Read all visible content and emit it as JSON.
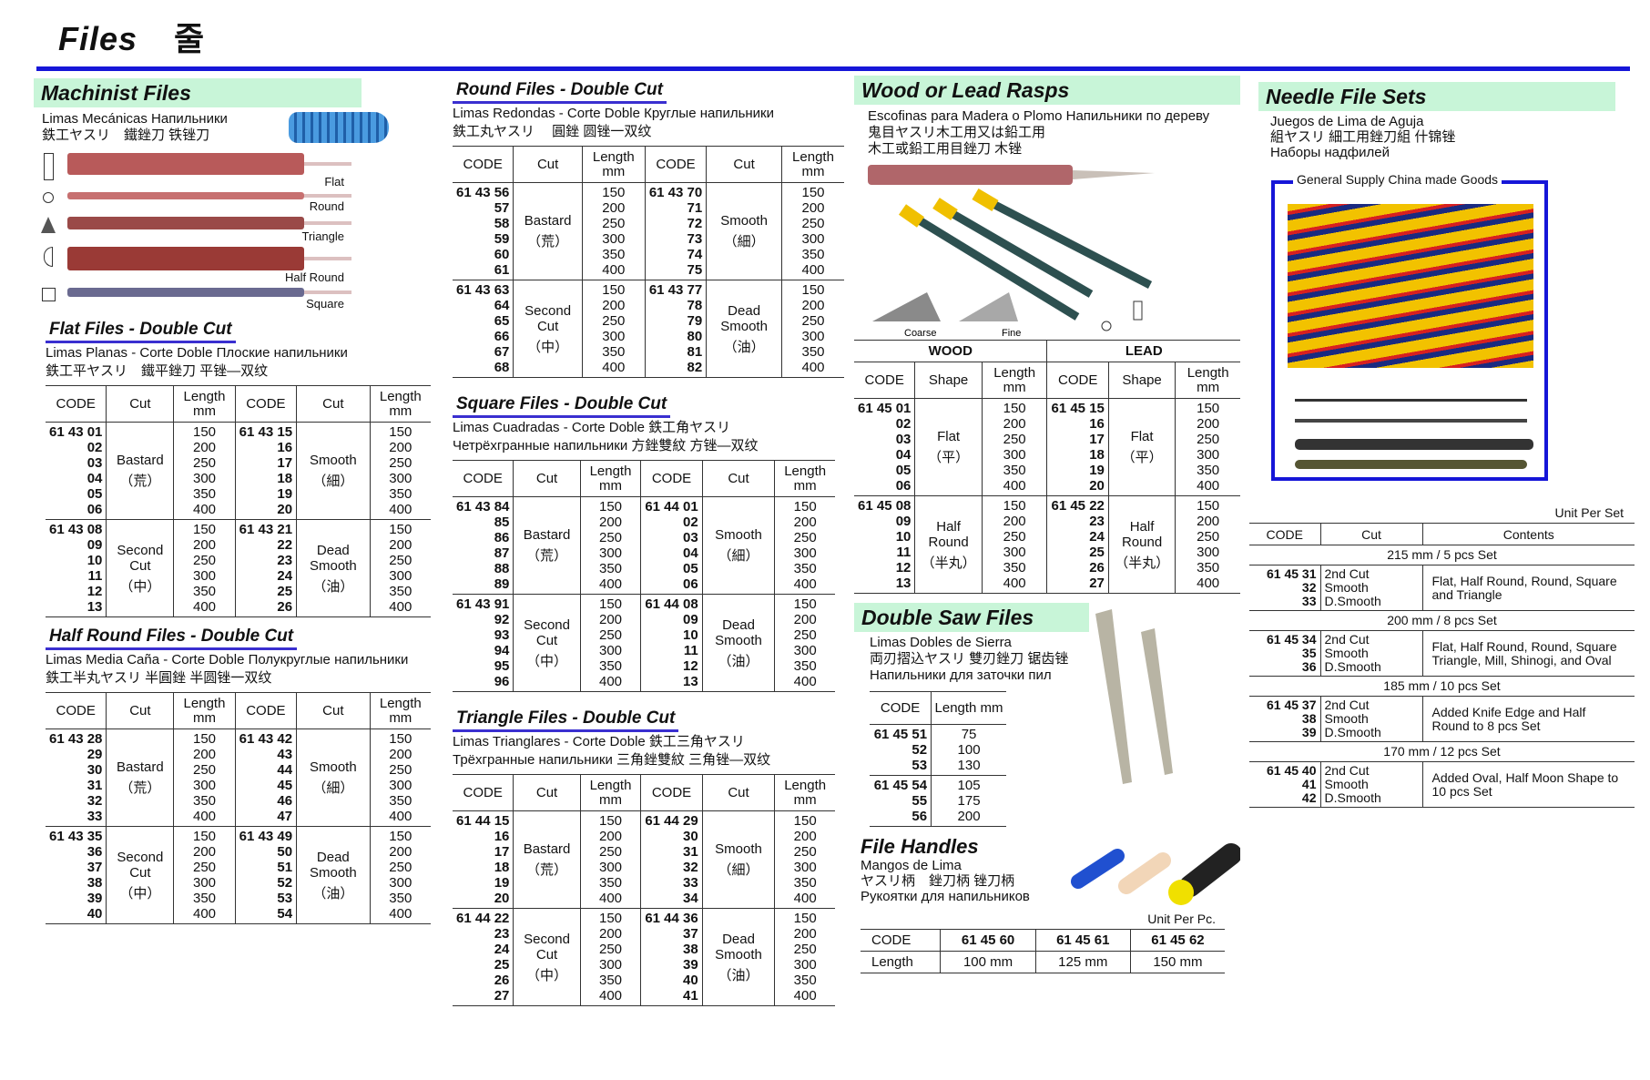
{
  "page": {
    "title": "Files",
    "title_ko": "줄"
  },
  "colors": {
    "rule": "#1616d8",
    "section_bar": "#c8f5d8",
    "underline": "#3a2fd0"
  },
  "machinist": {
    "title": "Machinist Files",
    "sub1": "Limas Mecánicas Напильники",
    "sub2": "鉄工ヤスリ　鐵銼刀 铁锉刀",
    "shapes": [
      {
        "label": "Flat",
        "icon": "rectangle-icon"
      },
      {
        "label": "Round",
        "icon": "circle-icon"
      },
      {
        "label": "Triangle",
        "icon": "triangle-icon"
      },
      {
        "label": "Half Round",
        "icon": "half-circle-icon"
      },
      {
        "label": "Square",
        "icon": "square-icon"
      }
    ]
  },
  "flat": {
    "title": "Flat Files - Double Cut",
    "sub1": "Limas Planas - Corte Doble Плоские напильники",
    "sub2": "鉄工平ヤスリ　鐵平銼刀 平锉—双纹",
    "headers": [
      "CODE",
      "Cut",
      "Length mm",
      "CODE",
      "Cut",
      "Length mm"
    ],
    "groups": [
      {
        "lcodes": [
          "61 43 01",
          "02",
          "03",
          "04",
          "05",
          "06"
        ],
        "lcut": "Bastard",
        "lcjk": "（荒）",
        "rcodes": [
          "61 43 15",
          "16",
          "17",
          "18",
          "19",
          "20"
        ],
        "rcut": "Smooth",
        "rcjk": "（細）",
        "lengths": [
          "150",
          "200",
          "250",
          "300",
          "350",
          "400"
        ]
      },
      {
        "lcodes": [
          "61 43 08",
          "09",
          "10",
          "11",
          "12",
          "13"
        ],
        "lcut": "Second Cut",
        "lcjk": "（中）",
        "rcodes": [
          "61 43 21",
          "22",
          "23",
          "24",
          "25",
          "26"
        ],
        "rcut": "Dead Smooth",
        "rcjk": "（油）",
        "lengths": [
          "150",
          "200",
          "250",
          "300",
          "350",
          "400"
        ]
      }
    ]
  },
  "halfround": {
    "title": "Half Round Files - Double Cut",
    "sub1": "Limas Media Caña - Corte Doble Полукруглые напильники",
    "sub2": "鉄工半丸ヤスリ 半圓銼 半圆锉一双纹",
    "headers": [
      "CODE",
      "Cut",
      "Length mm",
      "CODE",
      "Cut",
      "Length mm"
    ],
    "groups": [
      {
        "lcodes": [
          "61 43 28",
          "29",
          "30",
          "31",
          "32",
          "33"
        ],
        "lcut": "Bastard",
        "lcjk": "（荒）",
        "rcodes": [
          "61 43 42",
          "43",
          "44",
          "45",
          "46",
          "47"
        ],
        "rcut": "Smooth",
        "rcjk": "（細）",
        "lengths": [
          "150",
          "200",
          "250",
          "300",
          "350",
          "400"
        ]
      },
      {
        "lcodes": [
          "61 43 35",
          "36",
          "37",
          "38",
          "39",
          "40"
        ],
        "lcut": "Second Cut",
        "lcjk": "（中）",
        "rcodes": [
          "61 43 49",
          "50",
          "51",
          "52",
          "53",
          "54"
        ],
        "rcut": "Dead Smooth",
        "rcjk": "（油）",
        "lengths": [
          "150",
          "200",
          "250",
          "300",
          "350",
          "400"
        ]
      }
    ]
  },
  "round": {
    "title": "Round Files - Double Cut",
    "sub1": "Limas Redondas - Corte Doble  Круглые напильники",
    "sub2": "鉄工丸ヤスリ　 圓銼 圆锉一双纹",
    "headers": [
      "CODE",
      "Cut",
      "Length mm",
      "CODE",
      "Cut",
      "Length mm"
    ],
    "groups": [
      {
        "lcodes": [
          "61 43 56",
          "57",
          "58",
          "59",
          "60",
          "61"
        ],
        "lcut": "Bastard",
        "lcjk": "（荒）",
        "rcodes": [
          "61 43 70",
          "71",
          "72",
          "73",
          "74",
          "75"
        ],
        "rcut": "Smooth",
        "rcjk": "（細）",
        "lengths": [
          "150",
          "200",
          "250",
          "300",
          "350",
          "400"
        ]
      },
      {
        "lcodes": [
          "61 43 63",
          "64",
          "65",
          "66",
          "67",
          "68"
        ],
        "lcut": "Second Cut",
        "lcjk": "（中）",
        "rcodes": [
          "61 43 77",
          "78",
          "79",
          "80",
          "81",
          "82"
        ],
        "rcut": "Dead Smooth",
        "rcjk": "（油）",
        "lengths": [
          "150",
          "200",
          "250",
          "300",
          "350",
          "400"
        ]
      }
    ]
  },
  "square": {
    "title": "Square Files - Double Cut",
    "sub1": "Limas Cuadradas - Corte Doble 鉄工角ヤスリ",
    "sub2": "Четрёхгранные напильники 方銼雙紋 方锉—双纹",
    "headers": [
      "CODE",
      "Cut",
      "Length mm",
      "CODE",
      "Cut",
      "Length mm"
    ],
    "groups": [
      {
        "lcodes": [
          "61 43 84",
          "85",
          "86",
          "87",
          "88",
          "89"
        ],
        "lcut": "Bastard",
        "lcjk": "（荒）",
        "rcodes": [
          "61 44 01",
          "02",
          "03",
          "04",
          "05",
          "06"
        ],
        "rcut": "Smooth",
        "rcjk": "（細）",
        "lengths": [
          "150",
          "200",
          "250",
          "300",
          "350",
          "400"
        ]
      },
      {
        "lcodes": [
          "61 43 91",
          "92",
          "93",
          "94",
          "95",
          "96"
        ],
        "lcut": "Second Cut",
        "lcjk": "（中）",
        "rcodes": [
          "61 44 08",
          "09",
          "10",
          "11",
          "12",
          "13"
        ],
        "rcut": "Dead Smooth",
        "rcjk": "（油）",
        "lengths": [
          "150",
          "200",
          "250",
          "300",
          "350",
          "400"
        ]
      }
    ]
  },
  "triangle": {
    "title": "Triangle Files - Double Cut",
    "sub1": "Limas Trianglares - Corte Doble 鉄工三角ヤスリ",
    "sub2": "Трёхгранные напильники 三角銼雙紋 三角锉—双纹",
    "headers": [
      "CODE",
      "Cut",
      "Length mm",
      "CODE",
      "Cut",
      "Length mm"
    ],
    "groups": [
      {
        "lcodes": [
          "61 44 15",
          "16",
          "17",
          "18",
          "19",
          "20"
        ],
        "lcut": "Bastard",
        "lcjk": "（荒）",
        "rcodes": [
          "61 44 29",
          "30",
          "31",
          "32",
          "33",
          "34"
        ],
        "rcut": "Smooth",
        "rcjk": "（細）",
        "lengths": [
          "150",
          "200",
          "250",
          "300",
          "350",
          "400"
        ]
      },
      {
        "lcodes": [
          "61 44 22",
          "23",
          "24",
          "25",
          "26",
          "27"
        ],
        "lcut": "Second Cut",
        "lcjk": "（中）",
        "rcodes": [
          "61 44 36",
          "37",
          "38",
          "39",
          "40",
          "41"
        ],
        "rcut": "Dead Smooth",
        "rcjk": "（油）",
        "lengths": [
          "150",
          "200",
          "250",
          "300",
          "350",
          "400"
        ]
      }
    ]
  },
  "wood": {
    "title": "Wood or Lead Rasps",
    "sub1": "Escofinas para Madera o Plomo Напильники по дереву",
    "sub2": "鬼目ヤスリ木工用又は鉛工用",
    "sub3": "木工或鉛工用目銼刀 木锉",
    "coarse": "Coarse",
    "fine": "Fine",
    "top": [
      "WOOD",
      "LEAD"
    ],
    "headers": [
      "CODE",
      "Shape",
      "Length mm",
      "CODE",
      "Shape",
      "Length mm"
    ],
    "groups": [
      {
        "lcodes": [
          "61 45 01",
          "02",
          "03",
          "04",
          "05",
          "06"
        ],
        "lcut": "Flat",
        "lcjk": "（平）",
        "rcodes": [
          "61 45 15",
          "16",
          "17",
          "18",
          "19",
          "20"
        ],
        "rcut": "Flat",
        "rcjk": "（平）",
        "lengths": [
          "150",
          "200",
          "250",
          "300",
          "350",
          "400"
        ]
      },
      {
        "lcodes": [
          "61 45 08",
          "09",
          "10",
          "11",
          "12",
          "13"
        ],
        "lcut": "Half Round",
        "lcjk": "（半丸）",
        "rcodes": [
          "61 45 22",
          "23",
          "24",
          "25",
          "26",
          "27"
        ],
        "rcut": "Half Round",
        "rcjk": "（半丸）",
        "lengths": [
          "150",
          "200",
          "250",
          "300",
          "350",
          "400"
        ]
      }
    ]
  },
  "saw": {
    "title": "Double Saw Files",
    "sub1": "Limas Dobles de Sierra",
    "sub2": "両刃摺込ヤスリ 雙刃銼刀 锯齿锉",
    "sub3": "Напильники для заточки пил",
    "headers": [
      "CODE",
      "Length mm"
    ],
    "groups": [
      {
        "codes": [
          "61 45 51",
          "52",
          "53"
        ],
        "lengths": [
          "75",
          "100",
          "130"
        ]
      },
      {
        "codes": [
          "61 45 54",
          "55",
          "56"
        ],
        "lengths": [
          "105",
          "175",
          "200"
        ]
      }
    ]
  },
  "handles": {
    "title": "File Handles",
    "sub1": "Mangos de Lima",
    "sub2": "ヤスリ柄　銼刀柄 锉刀柄",
    "sub3": "Рукоятки для напильников",
    "unit": "Unit Per Pc.",
    "rows": [
      [
        "CODE",
        "61 45 60",
        "61 45 61",
        "61 45 62"
      ],
      [
        "Length",
        "100 mm",
        "125 mm",
        "150 mm"
      ]
    ]
  },
  "needle": {
    "title": "Needle File Sets",
    "sub1": "Juegos de Lima de Aguja",
    "sub2": "組ヤスリ 細工用銼刀組 什锦锉",
    "sub3": "Наборы надфилей",
    "caption": "General Supply China made Goods",
    "unit": "Unit Per Set",
    "headers": [
      "CODE",
      "Cut",
      "Contents"
    ],
    "sections": [
      {
        "label": "215 mm / 5 pcs Set",
        "codes": [
          "61 45 31",
          "32",
          "33"
        ],
        "cuts": [
          "2nd Cut",
          "Smooth",
          "D.Smooth"
        ],
        "contents": "Flat, Half Round, Round, Square and Triangle"
      },
      {
        "label": "200 mm / 8 pcs Set",
        "codes": [
          "61 45 34",
          "35",
          "36"
        ],
        "cuts": [
          "2nd Cut",
          "Smooth",
          "D.Smooth"
        ],
        "contents": "Flat, Half Round, Round, Square Triangle, Mill, Shinogi, and Oval"
      },
      {
        "label": "185 mm / 10 pcs Set",
        "codes": [
          "61 45 37",
          "38",
          "39"
        ],
        "cuts": [
          "2nd Cut",
          "Smooth",
          "D.Smooth"
        ],
        "contents": "Added Knife Edge and Half Round to 8 pcs Set"
      },
      {
        "label": "170 mm / 12 pcs Set",
        "codes": [
          "61 45 40",
          "41",
          "42"
        ],
        "cuts": [
          "2nd Cut",
          "Smooth",
          "D.Smooth"
        ],
        "contents": "Added Oval, Half Moon Shape to 10 pcs Set"
      }
    ]
  }
}
